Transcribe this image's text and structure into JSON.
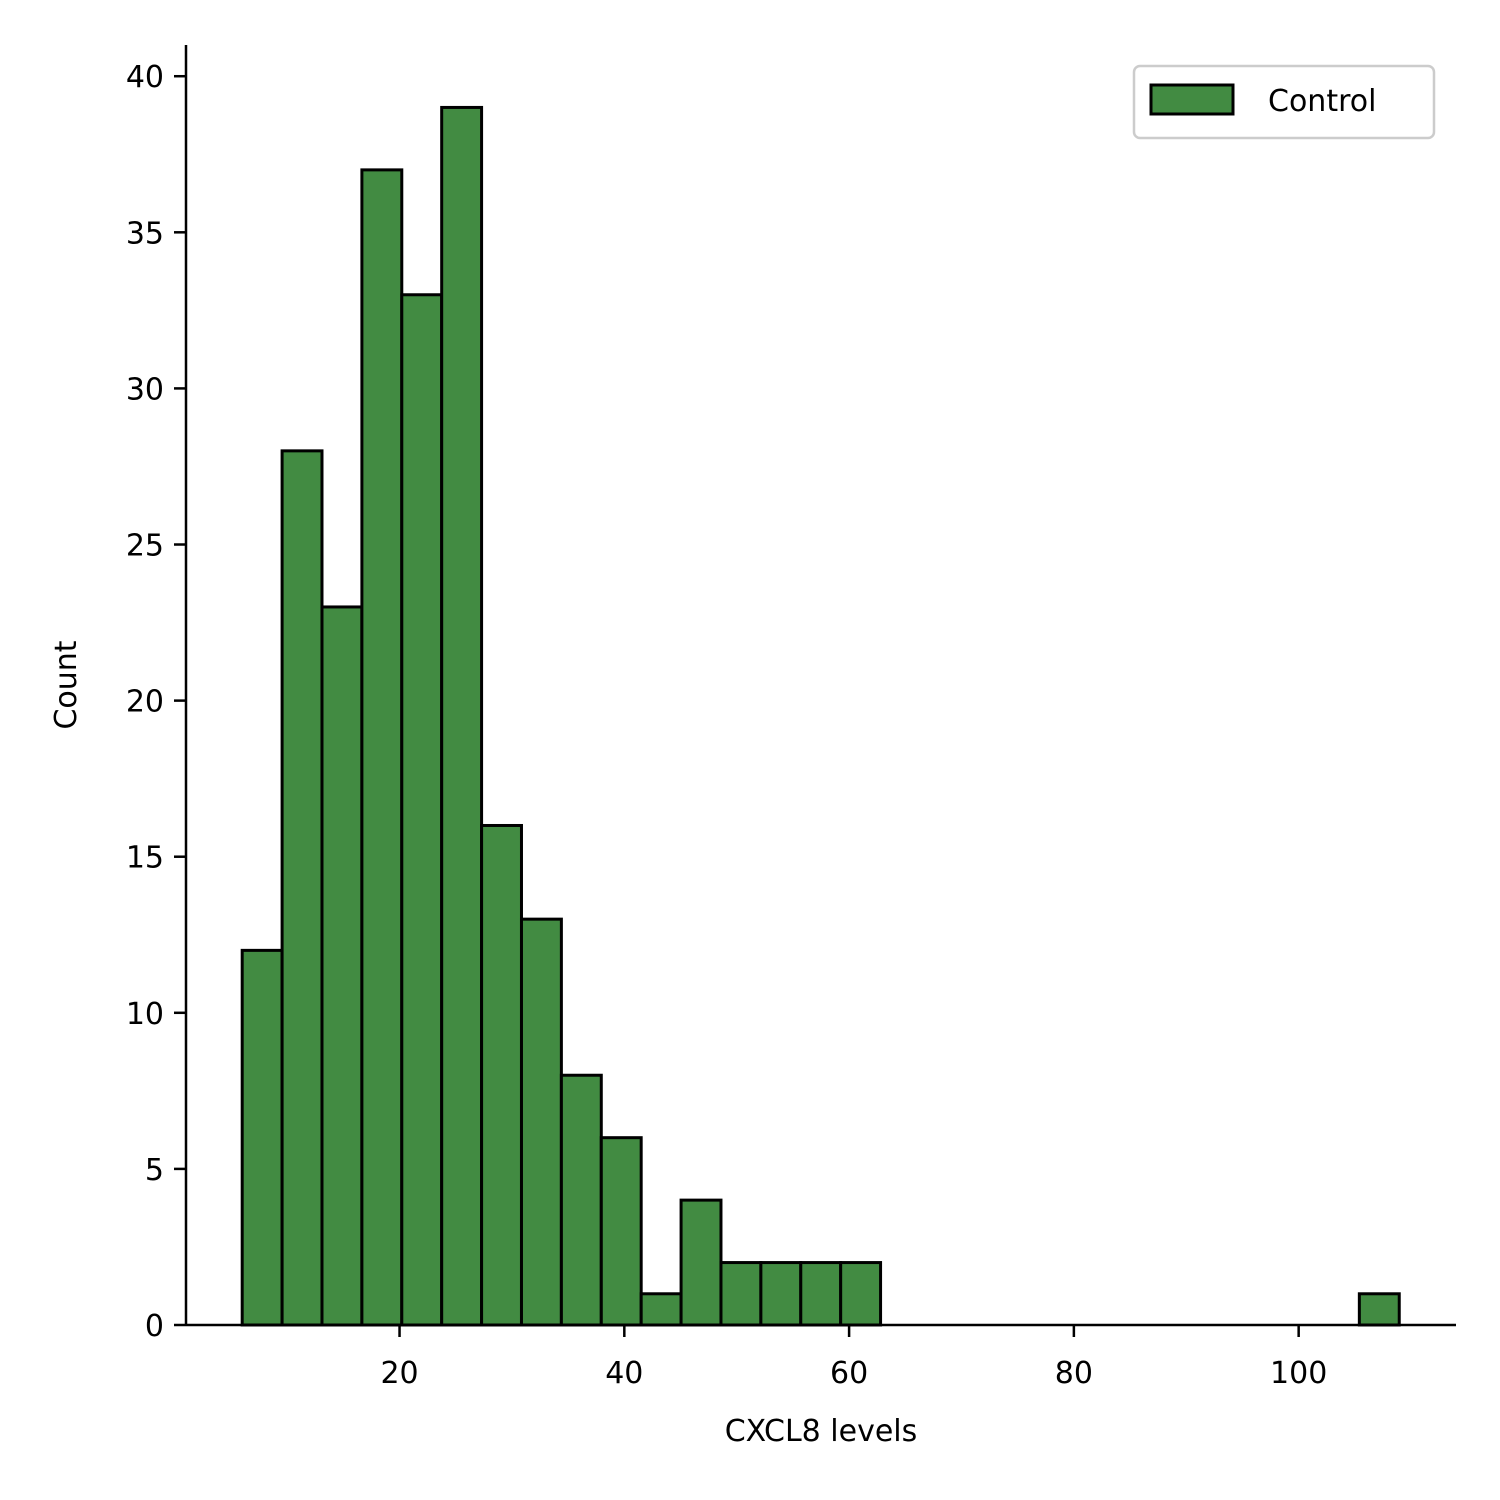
{
  "chart_data": {
    "type": "bar",
    "subtype": "histogram",
    "xlabel": "CXCL8 levels",
    "ylabel": "Count",
    "xlim": [
      1,
      114
    ],
    "ylim": [
      0,
      41
    ],
    "x_ticks": [
      20,
      40,
      60,
      80,
      100
    ],
    "y_ticks": [
      0,
      5,
      10,
      15,
      20,
      25,
      30,
      35,
      40
    ],
    "bin_width": 3.55,
    "bin_edges": [
      6.0,
      9.55,
      13.1,
      16.65,
      20.2,
      23.75,
      27.3,
      30.85,
      34.4,
      37.95,
      41.5,
      45.05,
      48.6,
      52.15,
      55.7,
      59.25,
      62.8,
      66.35,
      69.9,
      73.45,
      77.0,
      80.55,
      84.1,
      87.65,
      91.2,
      94.75,
      98.3,
      101.85,
      105.4,
      108.95
    ],
    "counts": [
      12,
      28,
      23,
      37,
      33,
      39,
      16,
      13,
      8,
      6,
      1,
      4,
      2,
      2,
      2,
      2,
      0,
      0,
      0,
      0,
      0,
      0,
      0,
      0,
      0,
      0,
      0,
      0,
      1
    ],
    "grid": false,
    "legend": {
      "position": "top-right",
      "entries": [
        "Control"
      ]
    },
    "colors": {
      "bar_fill": "#428b42",
      "bar_edge": "#000000"
    }
  }
}
